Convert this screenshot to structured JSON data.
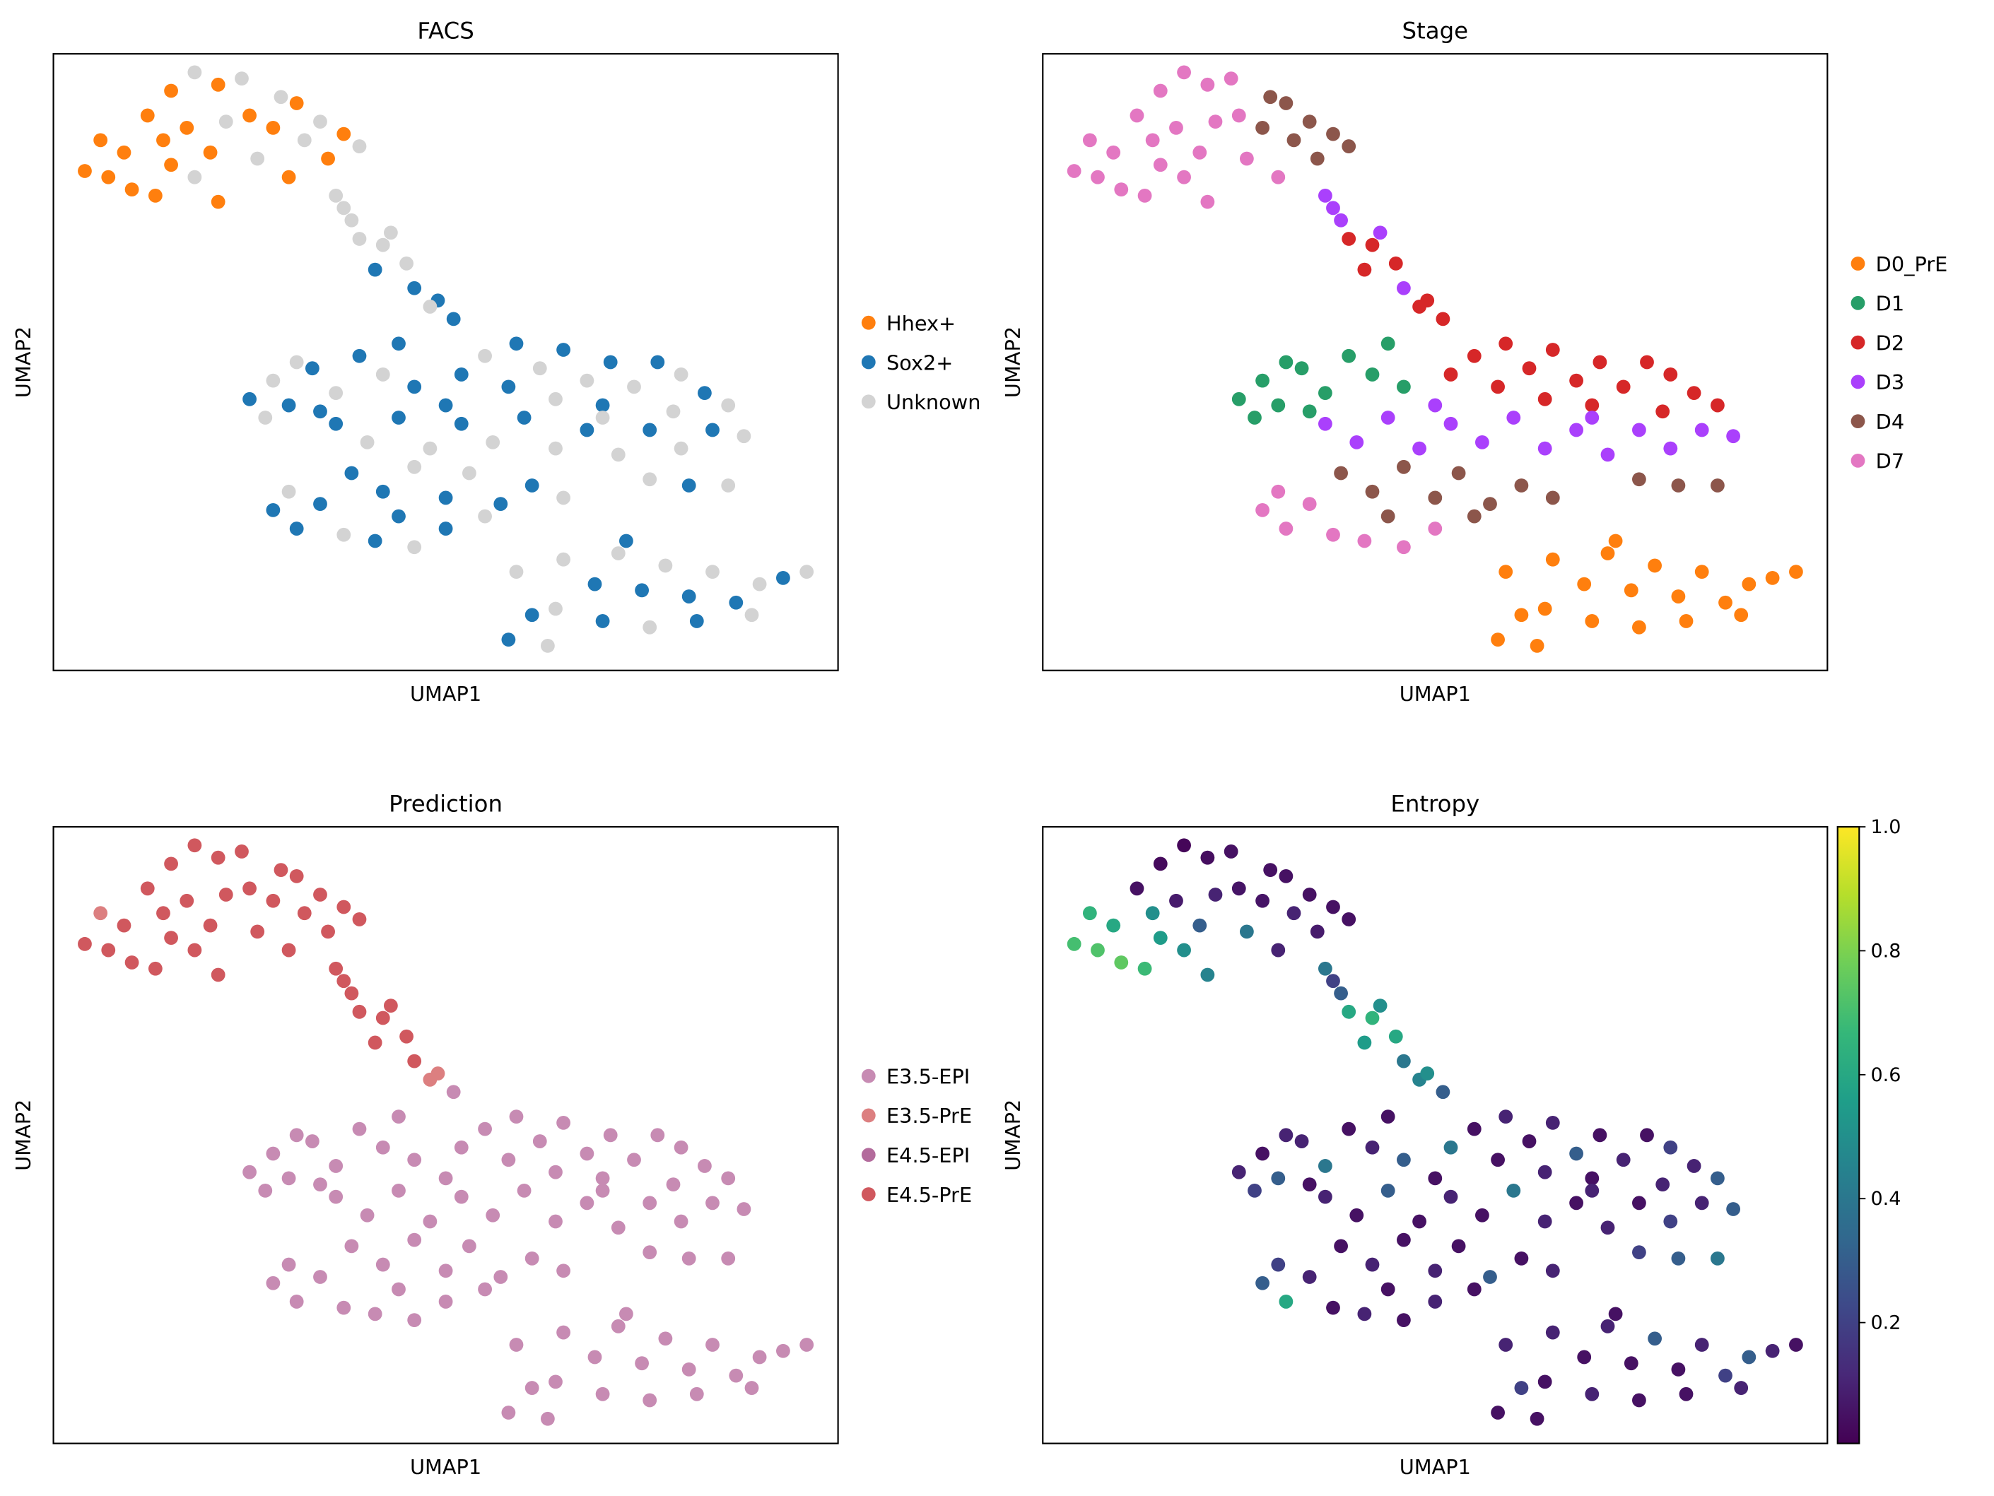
{
  "chart_data": [
    {
      "type": "scatter",
      "title": "FACS",
      "xlabel": "UMAP1",
      "ylabel": "UMAP2",
      "color_key": "facs",
      "legend_placement": "right",
      "categories": [
        "Hhex+",
        "Sox2+",
        "Unknown"
      ],
      "colors": [
        "#ff7f0e",
        "#1f77b4",
        "#d3d3d3"
      ]
    },
    {
      "type": "scatter",
      "title": "Stage",
      "xlabel": "UMAP1",
      "ylabel": "UMAP2",
      "color_key": "stage",
      "legend_placement": "right",
      "categories": [
        "D0_PrE",
        "D1",
        "D2",
        "D3",
        "D4",
        "D7"
      ],
      "colors": [
        "#ff7f0e",
        "#279e68",
        "#d62728",
        "#aa40fc",
        "#8c564b",
        "#e377c2"
      ]
    },
    {
      "type": "scatter",
      "title": "Prediction",
      "xlabel": "UMAP1",
      "ylabel": "UMAP2",
      "color_key": "prediction",
      "legend_placement": "right",
      "categories": [
        "E3.5-EPI",
        "E3.5-PrE",
        "E4.5-EPI",
        "E4.5-PrE"
      ],
      "colors": [
        "#c78bb3",
        "#dc7f80",
        "#b36b9c",
        "#d0585e"
      ]
    },
    {
      "type": "scatter",
      "title": "Entropy",
      "xlabel": "UMAP1",
      "ylabel": "UMAP2",
      "color_key": "entropy",
      "colormap": "viridis",
      "colorbar": {
        "range": [
          0.005,
          1.0
        ],
        "ticks": [
          "0.2",
          "0.4",
          "0.6",
          "0.8",
          "1.0"
        ],
        "tick_values": [
          0.2,
          0.4,
          0.6,
          0.8,
          1.0
        ]
      }
    }
  ],
  "cells_columns": [
    "umap1",
    "umap2",
    "facs",
    "stage",
    "prediction",
    "entropy"
  ],
  "cells": [
    [
      0.4,
      8.1,
      0,
      5,
      3,
      0.7
    ],
    [
      0.7,
      8.0,
      0,
      5,
      3,
      0.72
    ],
    [
      1.0,
      7.8,
      0,
      5,
      3,
      0.75
    ],
    [
      1.3,
      7.7,
      0,
      5,
      3,
      0.68
    ],
    [
      0.9,
      8.4,
      0,
      5,
      3,
      0.6
    ],
    [
      1.5,
      8.2,
      0,
      5,
      3,
      0.55
    ],
    [
      1.8,
      8.0,
      2,
      5,
      3,
      0.5
    ],
    [
      2.1,
      7.6,
      0,
      5,
      3,
      0.45
    ],
    [
      1.2,
      9.0,
      0,
      5,
      3,
      0.05
    ],
    [
      1.5,
      9.4,
      0,
      5,
      3,
      0.03
    ],
    [
      1.8,
      9.7,
      2,
      5,
      3,
      0.02
    ],
    [
      2.1,
      9.5,
      0,
      5,
      3,
      0.04
    ],
    [
      2.4,
      9.6,
      2,
      5,
      3,
      0.05
    ],
    [
      1.7,
      8.8,
      0,
      5,
      3,
      0.08
    ],
    [
      2.2,
      8.9,
      2,
      5,
      3,
      0.1
    ],
    [
      2.5,
      9.0,
      0,
      5,
      3,
      0.06
    ],
    [
      2.0,
      8.4,
      0,
      5,
      3,
      0.3
    ],
    [
      2.6,
      8.3,
      2,
      5,
      3,
      0.4
    ],
    [
      1.4,
      8.6,
      0,
      5,
      3,
      0.5
    ],
    [
      0.6,
      8.6,
      0,
      5,
      1,
      0.65
    ],
    [
      3.0,
      8.0,
      0,
      5,
      3,
      0.1
    ],
    [
      3.1,
      9.2,
      0,
      4,
      3,
      0.05
    ],
    [
      3.4,
      8.9,
      2,
      4,
      3,
      0.05
    ],
    [
      3.7,
      8.7,
      0,
      4,
      3,
      0.05
    ],
    [
      3.2,
      8.6,
      2,
      4,
      3,
      0.1
    ],
    [
      3.5,
      8.3,
      0,
      4,
      3,
      0.08
    ],
    [
      3.9,
      8.5,
      2,
      4,
      3,
      0.05
    ],
    [
      2.8,
      8.8,
      0,
      4,
      3,
      0.06
    ],
    [
      2.9,
      9.3,
      2,
      4,
      3,
      0.05
    ],
    [
      3.6,
      7.7,
      2,
      3,
      3,
      0.4
    ],
    [
      3.8,
      7.3,
      2,
      3,
      3,
      0.3
    ],
    [
      3.9,
      7.0,
      2,
      2,
      3,
      0.6
    ],
    [
      4.2,
      6.9,
      2,
      2,
      3,
      0.65
    ],
    [
      4.1,
      6.5,
      1,
      2,
      3,
      0.55
    ],
    [
      4.5,
      6.6,
      2,
      2,
      3,
      0.6
    ],
    [
      4.6,
      6.2,
      1,
      3,
      3,
      0.4
    ],
    [
      4.9,
      6.0,
      1,
      2,
      1,
      0.5
    ],
    [
      5.1,
      5.7,
      1,
      2,
      0,
      0.3
    ],
    [
      3.7,
      7.5,
      2,
      3,
      3,
      0.2
    ],
    [
      4.3,
      7.1,
      2,
      3,
      3,
      0.5
    ],
    [
      4.8,
      5.9,
      2,
      2,
      1,
      0.45
    ],
    [
      2.5,
      4.4,
      1,
      1,
      0,
      0.1
    ],
    [
      2.8,
      4.7,
      2,
      1,
      0,
      0.05
    ],
    [
      3.0,
      4.3,
      1,
      1,
      0,
      0.3
    ],
    [
      3.3,
      4.9,
      1,
      1,
      0,
      0.1
    ],
    [
      3.6,
      4.5,
      2,
      1,
      0,
      0.4
    ],
    [
      3.9,
      5.1,
      1,
      1,
      0,
      0.05
    ],
    [
      4.2,
      4.8,
      2,
      1,
      0,
      0.1
    ],
    [
      4.4,
      5.3,
      1,
      1,
      0,
      0.05
    ],
    [
      3.1,
      5.0,
      2,
      1,
      0,
      0.1
    ],
    [
      4.6,
      4.6,
      1,
      1,
      0,
      0.3
    ],
    [
      2.7,
      4.1,
      2,
      1,
      0,
      0.2
    ],
    [
      3.4,
      4.2,
      1,
      1,
      0,
      0.05
    ],
    [
      5.5,
      5.1,
      2,
      2,
      0,
      0.05
    ],
    [
      5.9,
      5.3,
      1,
      2,
      0,
      0.1
    ],
    [
      6.2,
      4.9,
      2,
      2,
      0,
      0.05
    ],
    [
      6.5,
      5.2,
      1,
      2,
      0,
      0.1
    ],
    [
      6.8,
      4.7,
      2,
      2,
      0,
      0.3
    ],
    [
      7.1,
      5.0,
      1,
      2,
      0,
      0.05
    ],
    [
      7.4,
      4.6,
      2,
      2,
      0,
      0.1
    ],
    [
      7.7,
      5.0,
      1,
      2,
      0,
      0.05
    ],
    [
      8.0,
      4.8,
      2,
      2,
      0,
      0.2
    ],
    [
      8.3,
      4.5,
      1,
      2,
      0,
      0.1
    ],
    [
      8.6,
      4.3,
      2,
      2,
      0,
      0.3
    ],
    [
      5.8,
      4.6,
      1,
      2,
      0,
      0.05
    ],
    [
      6.4,
      4.4,
      2,
      2,
      0,
      0.1
    ],
    [
      7.0,
      4.3,
      1,
      2,
      0,
      0.05
    ],
    [
      7.9,
      4.2,
      2,
      2,
      0,
      0.1
    ],
    [
      5.2,
      4.8,
      1,
      2,
      0,
      0.4
    ],
    [
      3.6,
      4.0,
      1,
      3,
      0,
      0.1
    ],
    [
      4.0,
      3.7,
      2,
      3,
      0,
      0.05
    ],
    [
      4.4,
      4.1,
      1,
      3,
      0,
      0.3
    ],
    [
      4.8,
      3.6,
      2,
      3,
      0,
      0.05
    ],
    [
      5.2,
      4.0,
      1,
      3,
      0,
      0.1
    ],
    [
      5.6,
      3.7,
      2,
      3,
      0,
      0.05
    ],
    [
      6.0,
      4.1,
      1,
      3,
      0,
      0.4
    ],
    [
      6.4,
      3.6,
      2,
      3,
      0,
      0.1
    ],
    [
      6.8,
      3.9,
      1,
      3,
      0,
      0.05
    ],
    [
      7.2,
      3.5,
      2,
      3,
      0,
      0.1
    ],
    [
      7.6,
      3.9,
      1,
      3,
      0,
      0.05
    ],
    [
      8.0,
      3.6,
      2,
      3,
      0,
      0.2
    ],
    [
      8.4,
      3.9,
      1,
      3,
      0,
      0.1
    ],
    [
      8.8,
      3.8,
      2,
      3,
      0,
      0.3
    ],
    [
      5.0,
      4.3,
      1,
      3,
      0,
      0.05
    ],
    [
      7.0,
      4.1,
      2,
      3,
      0,
      0.1
    ],
    [
      3.8,
      3.2,
      1,
      4,
      0,
      0.05
    ],
    [
      4.2,
      2.9,
      1,
      4,
      0,
      0.1
    ],
    [
      4.6,
      3.3,
      2,
      4,
      0,
      0.05
    ],
    [
      5.0,
      2.8,
      1,
      4,
      0,
      0.1
    ],
    [
      5.3,
      3.2,
      2,
      4,
      0,
      0.05
    ],
    [
      5.7,
      2.7,
      1,
      4,
      0,
      0.3
    ],
    [
      6.1,
      3.0,
      1,
      4,
      0,
      0.05
    ],
    [
      6.5,
      2.8,
      2,
      4,
      0,
      0.1
    ],
    [
      4.4,
      2.5,
      1,
      4,
      0,
      0.05
    ],
    [
      5.5,
      2.5,
      2,
      4,
      0,
      0.05
    ],
    [
      7.6,
      3.1,
      2,
      4,
      0,
      0.2
    ],
    [
      8.1,
      3.0,
      1,
      4,
      0,
      0.3
    ],
    [
      8.6,
      3.0,
      2,
      4,
      0,
      0.4
    ],
    [
      2.8,
      2.6,
      1,
      5,
      0,
      0.3
    ],
    [
      3.1,
      2.3,
      1,
      5,
      0,
      0.6
    ],
    [
      3.4,
      2.7,
      1,
      5,
      0,
      0.1
    ],
    [
      3.7,
      2.2,
      2,
      5,
      0,
      0.05
    ],
    [
      4.1,
      2.1,
      1,
      5,
      0,
      0.1
    ],
    [
      4.6,
      2.0,
      2,
      5,
      0,
      0.05
    ],
    [
      5.0,
      2.3,
      1,
      5,
      0,
      0.1
    ],
    [
      3.0,
      2.9,
      2,
      5,
      0,
      0.2
    ],
    [
      6.5,
      1.8,
      2,
      0,
      0,
      0.1
    ],
    [
      6.9,
      1.4,
      1,
      0,
      0,
      0.05
    ],
    [
      7.2,
      1.9,
      2,
      0,
      0,
      0.1
    ],
    [
      7.5,
      1.3,
      1,
      0,
      0,
      0.05
    ],
    [
      7.8,
      1.7,
      2,
      0,
      0,
      0.3
    ],
    [
      8.1,
      1.2,
      1,
      0,
      0,
      0.05
    ],
    [
      8.4,
      1.6,
      2,
      0,
      0,
      0.1
    ],
    [
      8.7,
      1.1,
      1,
      0,
      0,
      0.2
    ],
    [
      9.0,
      1.4,
      2,
      0,
      0,
      0.3
    ],
    [
      9.3,
      1.5,
      1,
      0,
      0,
      0.1
    ],
    [
      9.6,
      1.6,
      2,
      0,
      0,
      0.05
    ],
    [
      6.4,
      1.0,
      2,
      0,
      0,
      0.05
    ],
    [
      7.0,
      0.8,
      1,
      0,
      0,
      0.1
    ],
    [
      7.6,
      0.7,
      2,
      0,
      0,
      0.05
    ],
    [
      8.2,
      0.8,
      1,
      0,
      0,
      0.05
    ],
    [
      8.9,
      0.9,
      2,
      0,
      0,
      0.1
    ],
    [
      6.1,
      0.9,
      1,
      0,
      0,
      0.2
    ],
    [
      5.8,
      0.5,
      1,
      0,
      0,
      0.05
    ],
    [
      6.3,
      0.4,
      2,
      0,
      0,
      0.05
    ],
    [
      5.9,
      1.6,
      2,
      0,
      0,
      0.1
    ],
    [
      7.3,
      2.1,
      1,
      0,
      0,
      0.05
    ]
  ]
}
